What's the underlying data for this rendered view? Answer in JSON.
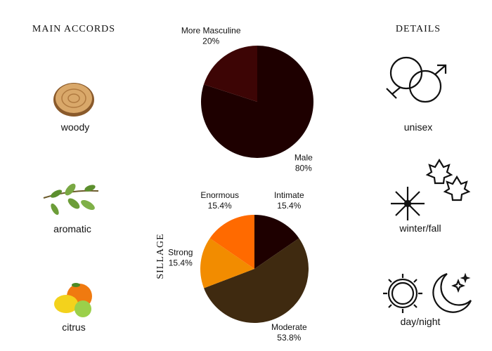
{
  "main_accords": {
    "title": "MAIN ACCORDS",
    "items": [
      "woody",
      "aromatic",
      "citrus"
    ]
  },
  "details": {
    "title": "DETAILS",
    "items": [
      "unisex",
      "winter/fall",
      "day/night"
    ]
  },
  "chart_data": [
    {
      "type": "pie",
      "categories": [
        "Male",
        "More Masculine"
      ],
      "values": [
        80,
        20
      ],
      "value_labels": [
        "80%",
        "20%"
      ],
      "colors": [
        "#1e0000",
        "#3d0505"
      ]
    },
    {
      "type": "pie",
      "title": "SILLAGE",
      "categories": [
        "Intimate",
        "Moderate",
        "Strong",
        "Enormous"
      ],
      "values": [
        15.4,
        53.8,
        15.4,
        15.4
      ],
      "value_labels": [
        "15.4%",
        "53.8%",
        "15.4%",
        "15.4%"
      ],
      "colors": [
        "#1e0000",
        "#3f2a10",
        "#f28c00",
        "#ff6a00"
      ]
    }
  ]
}
